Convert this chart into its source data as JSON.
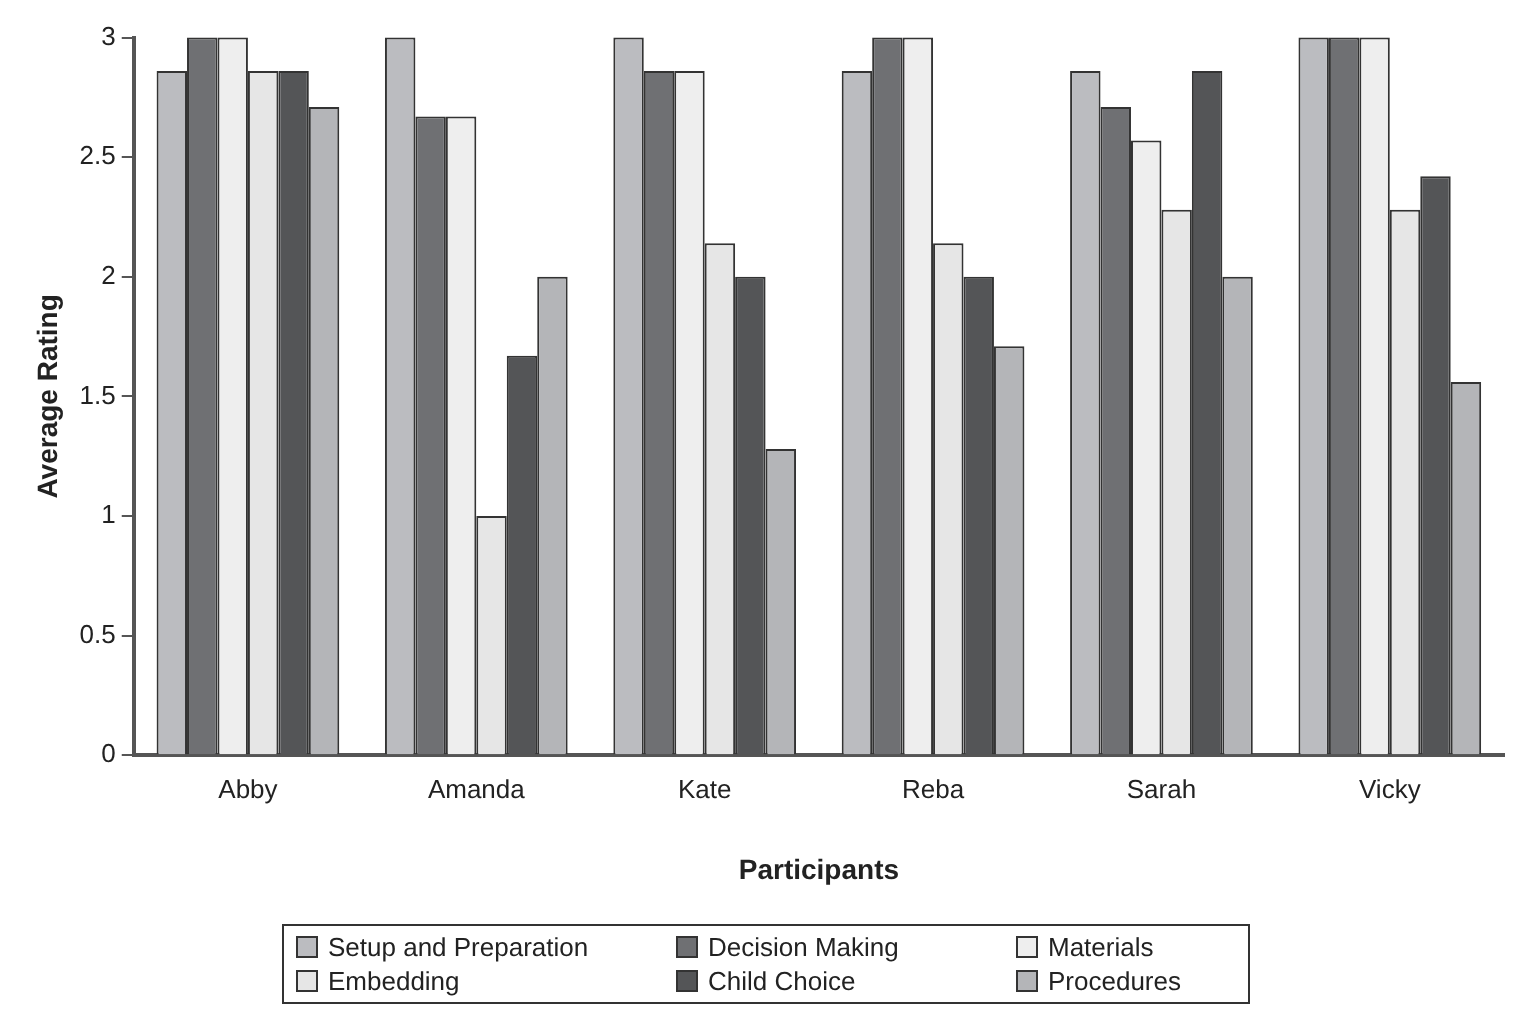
{
  "chart_data": {
    "type": "bar",
    "xlabel": "Participants",
    "ylabel": "Average Rating",
    "categories": [
      "Abby",
      "Amanda",
      "Kate",
      "Reba",
      "Sarah",
      "Vicky"
    ],
    "series": [
      {
        "name": "Setup and Preparation",
        "color": "#bbbcc0",
        "values": [
          2.86,
          3,
          3,
          2.86,
          2.86,
          3
        ]
      },
      {
        "name": "Decision Making",
        "color": "#6f7073",
        "values": [
          3,
          2.67,
          2.86,
          3,
          2.71,
          3
        ]
      },
      {
        "name": "Materials",
        "color": "#eeeeee",
        "values": [
          3,
          2.67,
          2.86,
          3,
          2.57,
          3
        ]
      },
      {
        "name": "Embedding",
        "color": "#e6e6e6",
        "values": [
          2.86,
          1,
          2.14,
          2.14,
          2.28,
          2.28
        ]
      },
      {
        "name": "Child Choice",
        "color": "#545557",
        "values": [
          2.86,
          1.67,
          2,
          2,
          2.86,
          2.42
        ]
      },
      {
        "name": "Procedures",
        "color": "#b4b5b8",
        "values": [
          2.71,
          2,
          1.28,
          1.71,
          2,
          1.56
        ]
      }
    ],
    "ylim": [
      0,
      3
    ],
    "yticks": [
      0,
      0.5,
      1,
      1.5,
      2,
      2.5,
      3
    ],
    "grid": false,
    "legend": "bottom"
  }
}
